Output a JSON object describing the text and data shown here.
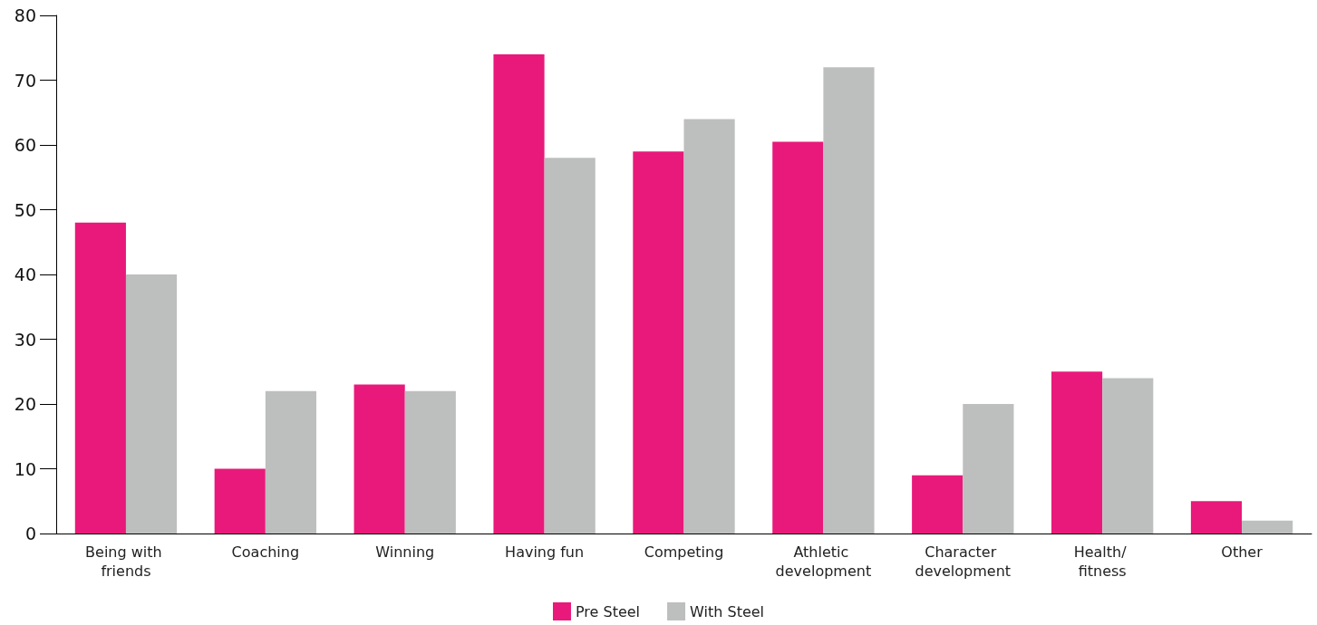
{
  "chart_data": {
    "type": "bar",
    "categories": [
      "Being with friends",
      "Coaching",
      "Winning",
      "Having fun",
      "Competing",
      "Athletic development",
      "Character development",
      "Health/ fitness",
      "Other"
    ],
    "series": [
      {
        "name": "Pre Steel",
        "color": "#e8197a",
        "values": [
          48,
          10,
          23,
          74,
          59,
          60.5,
          9,
          25,
          5
        ]
      },
      {
        "name": "With Steel",
        "color": "#bdbebe",
        "values": [
          40,
          22,
          22,
          58,
          64,
          72,
          20,
          24,
          2
        ]
      }
    ],
    "ylim": [
      0,
      80
    ],
    "yticks": [
      0,
      10,
      20,
      30,
      40,
      50,
      60,
      70,
      80
    ],
    "grid": false,
    "legend": "bottom"
  }
}
